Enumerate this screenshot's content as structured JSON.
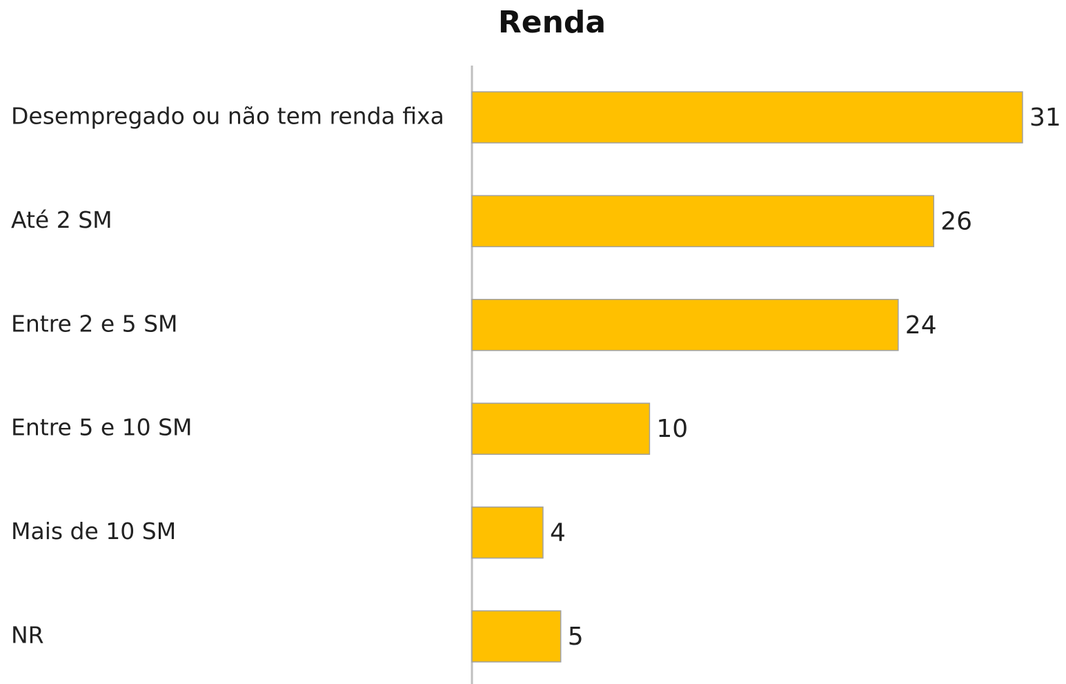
{
  "chart_data": {
    "type": "bar",
    "orientation": "horizontal",
    "title": "Renda",
    "categories": [
      "Desempregado ou não tem renda fixa",
      "Até 2 SM",
      "Entre 2 e 5 SM",
      "Entre 5 e 10 SM",
      "Mais de 10 SM",
      "NR"
    ],
    "values": [
      31,
      26,
      24,
      10,
      4,
      5
    ],
    "color": "#FFC000"
  }
}
